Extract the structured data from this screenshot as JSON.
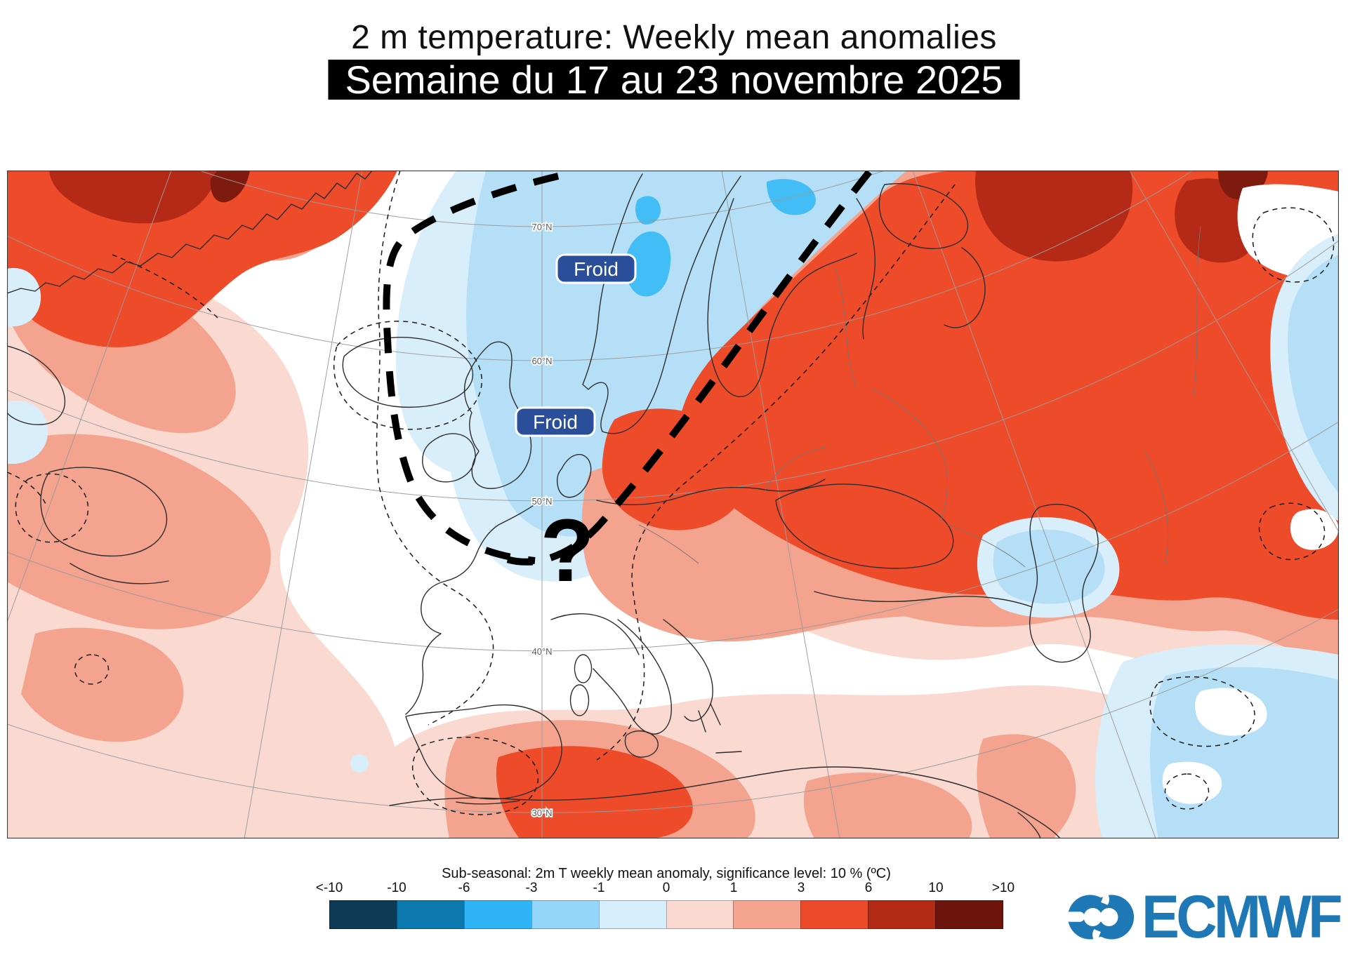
{
  "header": {
    "title": "2 m temperature: Weekly mean anomalies",
    "subtitle": "Semaine du 17 au 23 novembre 2025"
  },
  "map": {
    "froid_labels": [
      {
        "text": "Froid"
      },
      {
        "text": "Froid"
      }
    ],
    "question_mark": "?",
    "latitude_labels": [
      "70°N",
      "60°N",
      "50°N",
      "40°N",
      "30°N"
    ]
  },
  "legend": {
    "title": "Sub-seasonal: 2m T weekly mean anomaly, significance level: 10 % (ºC)",
    "tick_labels": [
      "<-10",
      "-10",
      "-6",
      "-3",
      "-1",
      "0",
      "1",
      "3",
      "6",
      "10",
      ">10"
    ],
    "colors": [
      "#0d3a55",
      "#0b78ae",
      "#2fb4f7",
      "#94d6f9",
      "#d6edfb",
      "#fad9d1",
      "#f4a38e",
      "#ee4b2a",
      "#b22a16",
      "#6d150d"
    ]
  },
  "footer": {
    "logo_text": "ECMWF"
  },
  "colors": {
    "pale_pink": "#fad9d1",
    "salmon": "#f4a38e",
    "red": "#ee4b2a",
    "dark_red": "#b52a17",
    "maroon": "#7f1a0e",
    "pale_blue": "#d9eefb",
    "light_blue": "#b4dff7",
    "bright_blue": "#43bdf6",
    "froid_box": "#2b4e9b",
    "logo_blue": "#1f78b6"
  }
}
